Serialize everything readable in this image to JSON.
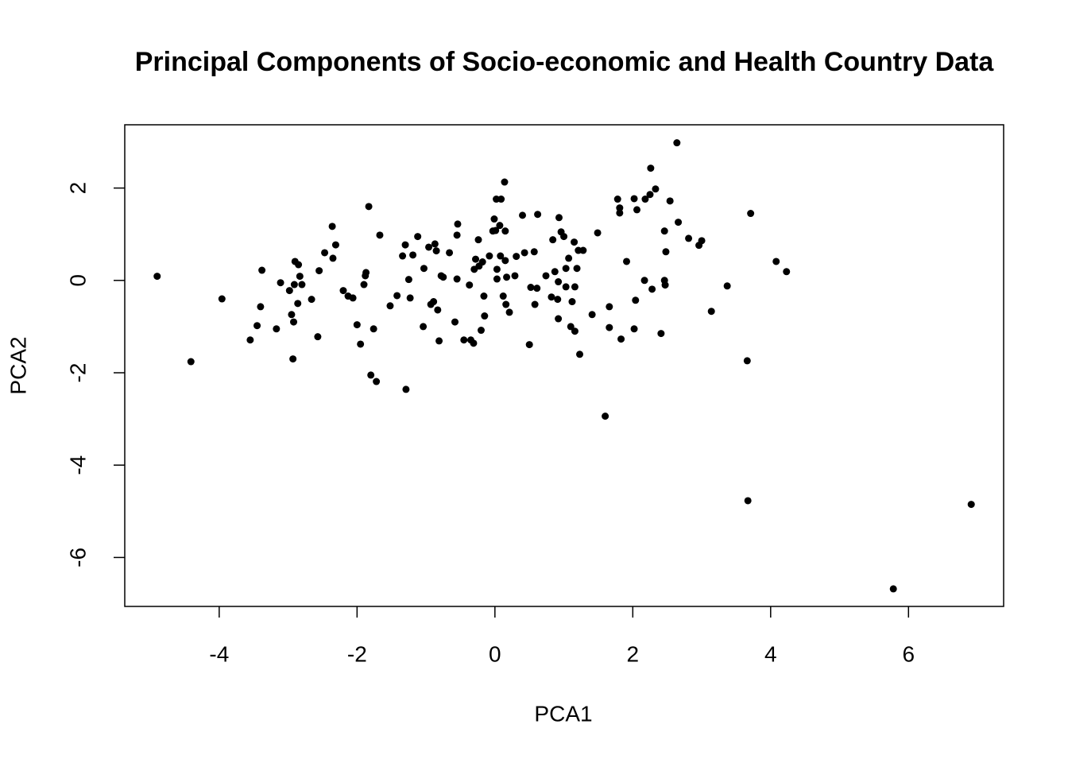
{
  "chart_data": {
    "type": "scatter",
    "title": "Principal Components of Socio-economic and Health Country Data",
    "xlabel": "PCA1",
    "ylabel": "PCA2",
    "color": "#000000",
    "xlim": [
      -5.37,
      7.38
    ],
    "ylim": [
      -7.06,
      3.37
    ],
    "xticks": [
      -4,
      -2,
      0,
      2,
      4,
      6
    ],
    "yticks": [
      -6,
      -4,
      -2,
      0,
      2
    ],
    "x": [
      -4.9,
      -4.41,
      -3.96,
      -3.55,
      -3.45,
      -3.4,
      -3.38,
      -3.17,
      -3.11,
      -2.98,
      -2.95,
      -2.93,
      -2.92,
      -2.91,
      -2.9,
      -2.85,
      -2.86,
      -2.83,
      -2.8,
      -2.66,
      -2.57,
      -2.55,
      -2.47,
      -2.36,
      -2.35,
      -2.31,
      -2.2,
      -2.13,
      -2.06,
      -2.0,
      -1.95,
      -1.9,
      -1.88,
      -1.87,
      -1.83,
      -1.8,
      -1.76,
      -1.72,
      -1.67,
      -1.52,
      -1.42,
      -1.34,
      -1.3,
      -1.29,
      -1.25,
      -1.23,
      -1.19,
      -1.12,
      -1.04,
      -1.03,
      -0.96,
      -0.93,
      -0.89,
      -0.87,
      -0.85,
      -0.83,
      -0.81,
      -0.78,
      -0.75,
      -0.66,
      -0.58,
      -0.55,
      -0.54,
      -0.55,
      -0.45,
      -0.37,
      -0.35,
      -0.31,
      -0.3,
      -0.28,
      -0.24,
      -0.23,
      -0.18,
      -0.2,
      -0.16,
      -0.15,
      -0.08,
      -0.03,
      -0.01,
      0.01,
      0.02,
      0.03,
      0.03,
      0.07,
      0.09,
      0.08,
      0.12,
      0.14,
      0.15,
      0.15,
      0.16,
      0.17,
      0.21,
      0.29,
      0.31,
      0.4,
      0.43,
      0.5,
      0.52,
      0.57,
      0.58,
      0.61,
      0.62,
      0.74,
      0.82,
      0.84,
      0.87,
      0.91,
      0.92,
      0.92,
      0.93,
      0.96,
      1.0,
      1.03,
      1.03,
      1.07,
      1.1,
      1.12,
      1.15,
      1.16,
      1.16,
      1.19,
      1.21,
      1.23,
      1.28,
      1.41,
      1.49,
      1.6,
      1.66,
      1.66,
      1.78,
      1.81,
      1.81,
      1.83,
      1.91,
      2.02,
      2.02,
      2.04,
      2.06,
      2.17,
      2.18,
      2.25,
      2.26,
      2.28,
      2.33,
      2.41,
      2.46,
      2.46,
      2.47,
      2.48,
      2.54,
      2.64,
      2.66,
      2.81,
      2.96,
      3.0,
      3.14,
      3.37,
      3.66,
      3.67,
      3.71,
      4.08,
      4.23,
      5.78,
      6.91
    ],
    "values": [
      0.09,
      -1.76,
      -0.4,
      -1.29,
      -0.98,
      -0.57,
      0.22,
      -1.05,
      -0.05,
      -0.22,
      -0.74,
      -1.7,
      -0.9,
      -0.09,
      0.41,
      0.34,
      -0.5,
      0.09,
      -0.09,
      -0.41,
      -1.22,
      0.21,
      0.6,
      1.17,
      0.48,
      0.77,
      -0.22,
      -0.34,
      -0.38,
      -0.96,
      -1.38,
      -0.09,
      0.1,
      0.17,
      1.6,
      -2.05,
      -1.05,
      -2.19,
      0.98,
      -0.55,
      -0.33,
      0.53,
      0.77,
      -2.36,
      0.02,
      -0.38,
      0.55,
      0.95,
      -1.0,
      0.26,
      0.72,
      -0.52,
      -0.46,
      0.79,
      0.64,
      -0.64,
      -1.31,
      0.1,
      0.07,
      0.6,
      -0.9,
      0.98,
      1.22,
      0.03,
      -1.29,
      -0.1,
      -1.29,
      -1.36,
      0.24,
      0.46,
      0.88,
      0.31,
      0.4,
      -1.08,
      -0.34,
      -0.77,
      0.53,
      1.07,
      1.33,
      1.08,
      1.76,
      0.24,
      0.03,
      1.19,
      1.76,
      0.53,
      -0.34,
      2.13,
      0.43,
      1.07,
      -0.52,
      0.07,
      -0.69,
      0.1,
      0.52,
      1.41,
      0.6,
      -1.39,
      -0.15,
      0.62,
      -0.52,
      -0.17,
      1.43,
      0.1,
      -0.36,
      0.88,
      0.19,
      -0.41,
      -0.03,
      -0.83,
      1.36,
      1.05,
      0.95,
      -0.14,
      0.26,
      0.48,
      -1.0,
      -0.46,
      0.83,
      -0.14,
      -1.1,
      0.26,
      0.65,
      -1.6,
      0.65,
      -0.74,
      1.03,
      -2.94,
      -0.57,
      -1.02,
      1.76,
      1.57,
      1.46,
      -1.27,
      0.41,
      -1.05,
      1.77,
      -0.43,
      1.53,
      0.0,
      1.76,
      1.86,
      2.43,
      -0.19,
      1.98,
      -1.15,
      1.07,
      0.0,
      -0.1,
      0.62,
      1.72,
      2.98,
      1.26,
      0.91,
      0.76,
      0.86,
      -0.67,
      -0.12,
      -1.74,
      -4.77,
      1.45,
      0.41,
      0.19,
      -6.68,
      -4.85
    ]
  }
}
